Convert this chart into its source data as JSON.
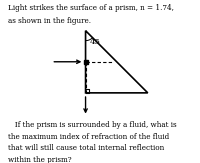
{
  "title_text": "Light strikes the surface of a prism, n = 1.74,",
  "title_text2": "as shown in the figure.",
  "angle_label": "45",
  "bottom_text_line1": "   If the prism is surrounded by a fluid, what is",
  "bottom_text_line2": "the maximum index of refraction of the fluid",
  "bottom_text_line3": "that will still cause total internal reflection",
  "bottom_text_line4": "within the prism?",
  "prism_color": "#000000",
  "bg_color": "#ffffff",
  "fig_width": 2.0,
  "fig_height": 1.63,
  "dpi": 100
}
